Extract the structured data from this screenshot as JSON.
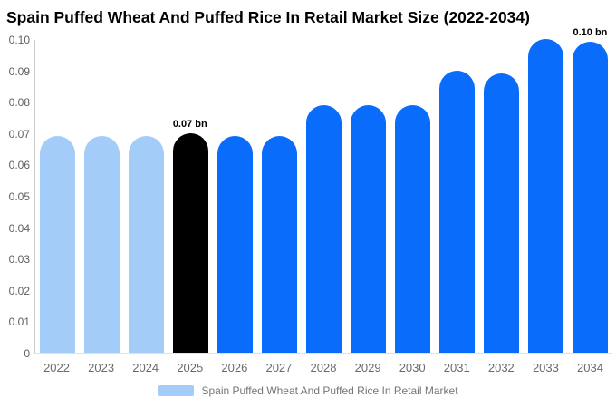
{
  "chart_data": {
    "type": "bar",
    "title": "Spain Puffed Wheat And Puffed Rice In Retail Market Size (2022-2034)",
    "categories": [
      "2022",
      "2023",
      "2024",
      "2025",
      "2026",
      "2027",
      "2028",
      "2029",
      "2030",
      "2031",
      "2032",
      "2033",
      "2034"
    ],
    "values": [
      0.069,
      0.069,
      0.069,
      0.07,
      0.069,
      0.069,
      0.079,
      0.079,
      0.079,
      0.09,
      0.089,
      0.1,
      0.099
    ],
    "bar_colors": [
      "#a3cdf8",
      "#a3cdf8",
      "#a3cdf8",
      "#000000",
      "#0a6cfb",
      "#0a6cfb",
      "#0a6cfb",
      "#0a6cfb",
      "#0a6cfb",
      "#0a6cfb",
      "#0a6cfb",
      "#0a6cfb",
      "#0a6cfb"
    ],
    "unit": "bn",
    "ylim": [
      0,
      0.1
    ],
    "ytick_values": [
      0,
      0.01,
      0.02,
      0.03,
      0.04,
      0.05,
      0.06,
      0.07,
      0.08,
      0.09,
      0.1
    ],
    "ytick_labels": [
      "0",
      "0.01",
      "0.02",
      "0.03",
      "0.04",
      "0.05",
      "0.06",
      "0.07",
      "0.08",
      "0.09",
      "0.10"
    ],
    "annotations": [
      {
        "index": 3,
        "text": "0.07 bn"
      },
      {
        "index": 12,
        "text": "0.10 bn"
      }
    ],
    "grid": false,
    "legend_position": "bottom",
    "legend": [
      {
        "label": "Spain Puffed Wheat And Puffed Rice In Retail Market",
        "color": "#a3cdf8"
      }
    ]
  },
  "colors": {
    "background": "#ffffff",
    "past_bars": "#a3cdf8",
    "highlight_bar": "#000000",
    "forecast_bars": "#0a6cfb",
    "axis_line": "#cccccc",
    "tick_text": "#5f5f5f",
    "legend_text": "#757575"
  }
}
